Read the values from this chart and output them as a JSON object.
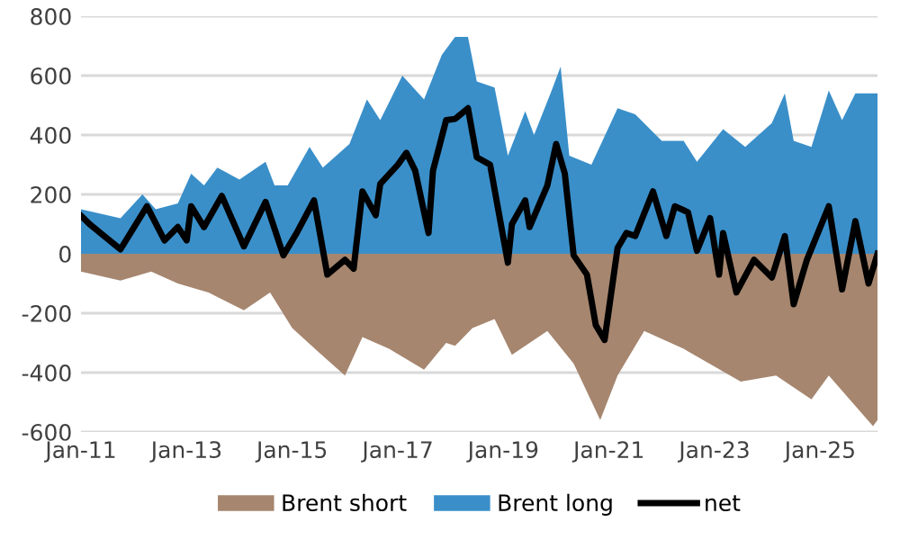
{
  "chart_data": {
    "type": "area",
    "series": [
      {
        "name": "Brent short",
        "color": "#a6866f",
        "x": [
          "2011-01",
          "2011-10",
          "2012-05",
          "2012-11",
          "2013-06",
          "2014-02",
          "2014-08",
          "2015-01",
          "2015-07",
          "2016-01",
          "2016-05",
          "2016-11",
          "2017-07",
          "2017-12",
          "2018-02",
          "2018-06",
          "2018-11",
          "2019-03",
          "2019-11",
          "2020-05",
          "2020-11",
          "2021-03",
          "2021-09",
          "2022-06",
          "2023-07",
          "2024-03",
          "2024-11",
          "2025-03",
          "2026-01",
          "2026-02"
        ],
        "values": [
          -60,
          -90,
          -60,
          -100,
          -130,
          -190,
          -130,
          -250,
          -330,
          -410,
          -280,
          -320,
          -390,
          -300,
          -310,
          -250,
          -220,
          -340,
          -260,
          -370,
          -560,
          -410,
          -260,
          -320,
          -430,
          -410,
          -490,
          -410,
          -580,
          -560
        ]
      },
      {
        "name": "Brent long",
        "color": "#3a8fc9",
        "x": [
          "2011-01",
          "2011-10",
          "2012-03",
          "2012-06",
          "2012-11",
          "2013-02",
          "2013-05",
          "2013-08",
          "2014-01",
          "2014-07",
          "2014-09",
          "2014-12",
          "2015-05",
          "2015-08",
          "2016-02",
          "2016-06",
          "2016-09",
          "2017-02",
          "2017-07",
          "2017-11",
          "2018-02",
          "2018-05",
          "2018-07",
          "2018-11",
          "2019-02",
          "2019-06",
          "2019-08",
          "2019-12",
          "2020-02",
          "2020-04",
          "2020-09",
          "2021-03",
          "2021-07",
          "2022-01",
          "2022-06",
          "2022-09",
          "2023-03",
          "2023-08",
          "2024-02",
          "2024-05",
          "2024-07",
          "2024-11",
          "2025-03",
          "2025-06",
          "2025-09",
          "2026-02"
        ],
        "values": [
          150,
          120,
          200,
          150,
          170,
          270,
          230,
          290,
          250,
          310,
          230,
          230,
          360,
          290,
          370,
          520,
          450,
          600,
          520,
          670,
          730,
          730,
          580,
          560,
          330,
          480,
          400,
          550,
          630,
          330,
          300,
          490,
          470,
          380,
          380,
          310,
          420,
          360,
          440,
          540,
          380,
          360,
          550,
          450,
          540,
          540
        ]
      },
      {
        "name": "net",
        "type": "line",
        "color": "#000000",
        "x": [
          "2011-01",
          "2011-03",
          "2011-10",
          "2012-04",
          "2012-08",
          "2012-11",
          "2013-01",
          "2013-02",
          "2013-05",
          "2013-09",
          "2014-02",
          "2014-07",
          "2014-11",
          "2015-02",
          "2015-06",
          "2015-09",
          "2016-01",
          "2016-03",
          "2016-05",
          "2016-08",
          "2016-09",
          "2017-01",
          "2017-03",
          "2017-05",
          "2017-08",
          "2017-09",
          "2017-12",
          "2018-02",
          "2018-05",
          "2018-07",
          "2018-10",
          "2019-02",
          "2019-03",
          "2019-06",
          "2019-07",
          "2019-11",
          "2020-01",
          "2020-03",
          "2020-05",
          "2020-08",
          "2020-10",
          "2020-12",
          "2021-03",
          "2021-05",
          "2021-07",
          "2021-11",
          "2022-02",
          "2022-04",
          "2022-07",
          "2022-09",
          "2022-12",
          "2023-02",
          "2023-03",
          "2023-06",
          "2023-10",
          "2024-02",
          "2024-05",
          "2024-07",
          "2024-10",
          "2025-03",
          "2025-06",
          "2025-09",
          "2025-12",
          "2026-02"
        ],
        "values": [
          128,
          100,
          15,
          160,
          45,
          90,
          45,
          160,
          90,
          195,
          25,
          175,
          -5,
          70,
          180,
          -70,
          -20,
          -50,
          210,
          130,
          235,
          300,
          340,
          280,
          70,
          280,
          450,
          454,
          490,
          325,
          300,
          -30,
          100,
          180,
          90,
          230,
          370,
          270,
          -5,
          -70,
          -240,
          -290,
          20,
          70,
          60,
          210,
          60,
          160,
          140,
          10,
          120,
          -70,
          70,
          -130,
          -20,
          -80,
          60,
          -170,
          -20,
          160,
          -120,
          110,
          -100,
          0
        ]
      }
    ],
    "xlim": [
      "2011-01",
      "2026-02"
    ],
    "xticks": [
      {
        "value": "2011-01",
        "label": "Jan-11"
      },
      {
        "value": "2013-01",
        "label": "Jan-13"
      },
      {
        "value": "2015-01",
        "label": "Jan-15"
      },
      {
        "value": "2017-01",
        "label": "Jan-17"
      },
      {
        "value": "2019-01",
        "label": "Jan-19"
      },
      {
        "value": "2021-01",
        "label": "Jan-21"
      },
      {
        "value": "2023-01",
        "label": "Jan-23"
      },
      {
        "value": "2025-01",
        "label": "Jan-25"
      }
    ],
    "ylim": [
      -600,
      800
    ],
    "yticks": [
      -600,
      -400,
      -200,
      0,
      200,
      400,
      600,
      800
    ],
    "grid": "y",
    "legend": "bottom"
  }
}
